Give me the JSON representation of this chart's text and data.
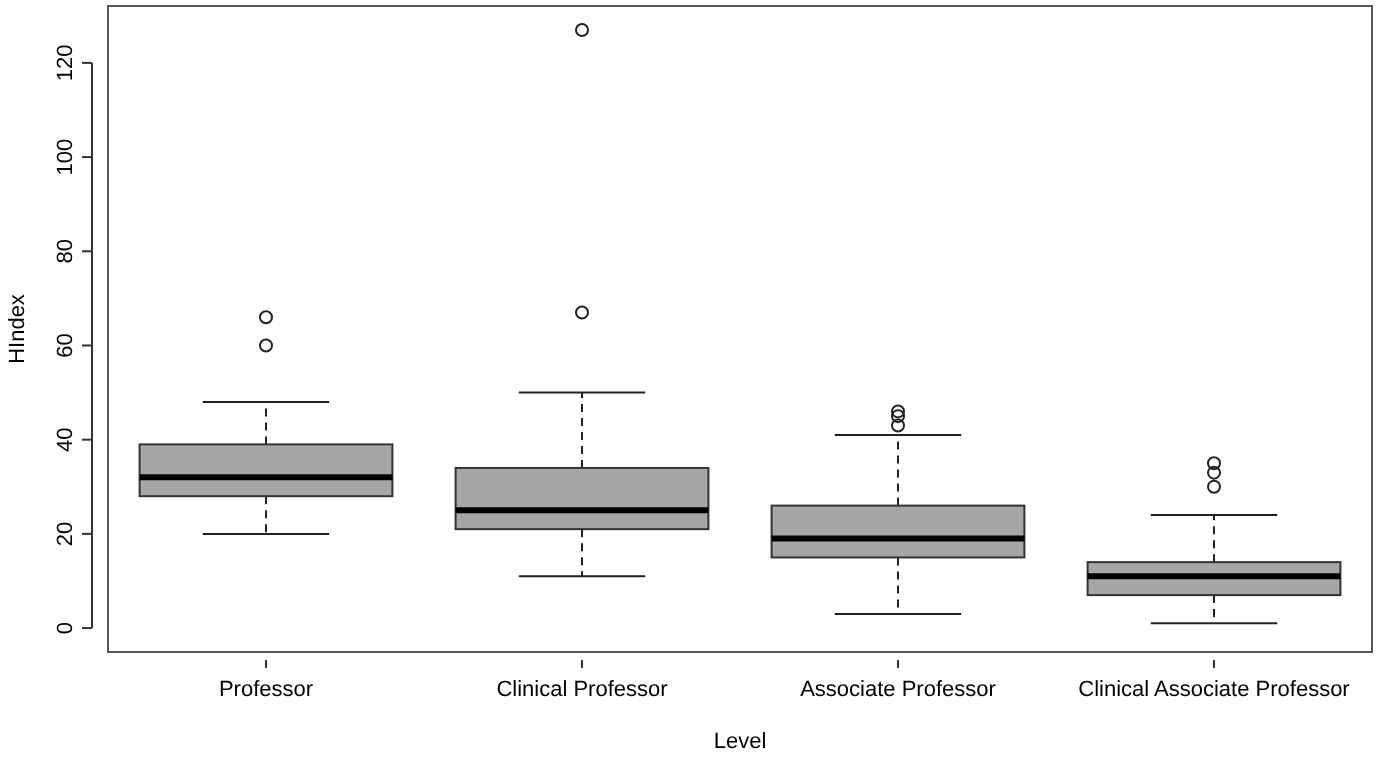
{
  "chart_data": {
    "type": "box",
    "xlabel": "Level",
    "ylabel": "HIndex",
    "categories": [
      "Professor",
      "Clinical Professor",
      "Associate Professor",
      "Clinical Associate Professor"
    ],
    "color": "#a6a6a6",
    "boxes": [
      {
        "low": 20,
        "q1": 28,
        "median": 32,
        "q3": 39,
        "high": 48,
        "outliers": [
          60,
          66
        ]
      },
      {
        "low": 11,
        "q1": 21,
        "median": 25,
        "q3": 34,
        "high": 50,
        "outliers": [
          67,
          127
        ]
      },
      {
        "low": 3,
        "q1": 15,
        "median": 19,
        "q3": 26,
        "high": 41,
        "outliers": [
          43,
          45,
          46
        ]
      },
      {
        "low": 1,
        "q1": 7,
        "median": 11,
        "q3": 14,
        "high": 24,
        "outliers": [
          30,
          33,
          35
        ]
      }
    ],
    "ylim": [
      -5.08,
      132.08
    ],
    "yticks": [
      0,
      20,
      40,
      60,
      80,
      100,
      120
    ],
    "grid": false
  }
}
